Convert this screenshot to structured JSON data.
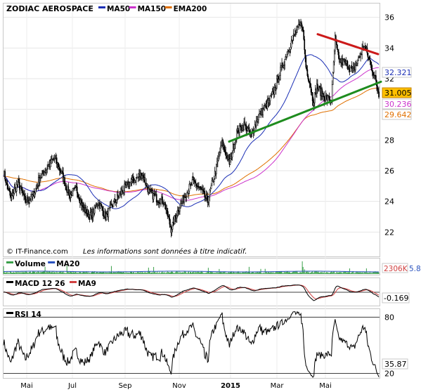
{
  "chart_data": [
    {
      "type": "line",
      "panel": "price",
      "title": "ZODIAC AEROSPACE",
      "legend": [
        {
          "label": "MA50",
          "color": "#1b2fb5"
        },
        {
          "label": "MA150",
          "color": "#cc33cc"
        },
        {
          "label": "EMA200",
          "color": "#e07000"
        }
      ],
      "y_ticks": [
        22,
        24,
        26,
        28,
        30,
        32,
        34,
        36
      ],
      "ylim": [
        21.1,
        36.9
      ],
      "x_ticks": [
        "Mai",
        "Jul",
        "Sep",
        "Nov",
        "2015",
        "Mar",
        "Mai"
      ],
      "value_tags": [
        {
          "value": "32.321",
          "series": "MA50",
          "color": "#1b2fb5"
        },
        {
          "value": "31.005",
          "series": "price",
          "color": "#000000",
          "bg": "#ffc000"
        },
        {
          "value": "30.236",
          "series": "MA150",
          "color": "#cc33cc"
        },
        {
          "value": "29.642",
          "series": "EMA200",
          "color": "#e07000"
        }
      ],
      "series_price_anchors": [
        [
          0,
          25.9
        ],
        [
          10,
          24.2
        ],
        [
          20,
          25.2
        ],
        [
          30,
          24.0
        ],
        [
          40,
          24.3
        ],
        [
          50,
          25.6
        ],
        [
          60,
          26.2
        ],
        [
          70,
          26.8
        ],
        [
          80,
          25.8
        ],
        [
          90,
          24.4
        ],
        [
          100,
          24.8
        ],
        [
          110,
          23.5
        ],
        [
          120,
          23.0
        ],
        [
          130,
          24.0
        ],
        [
          140,
          23.0
        ],
        [
          150,
          23.8
        ],
        [
          160,
          24.5
        ],
        [
          170,
          25.1
        ],
        [
          180,
          25.4
        ],
        [
          190,
          25.8
        ],
        [
          200,
          24.6
        ],
        [
          210,
          24.2
        ],
        [
          220,
          24.0
        ],
        [
          230,
          22.2
        ],
        [
          240,
          23.5
        ],
        [
          250,
          24.5
        ],
        [
          260,
          25.3
        ],
        [
          270,
          24.8
        ],
        [
          280,
          24.0
        ],
        [
          290,
          25.8
        ],
        [
          300,
          27.8
        ],
        [
          310,
          26.5
        ],
        [
          320,
          28.5
        ],
        [
          330,
          29.0
        ],
        [
          340,
          28.3
        ],
        [
          350,
          29.6
        ],
        [
          360,
          30.2
        ],
        [
          370,
          31.0
        ],
        [
          380,
          32.5
        ],
        [
          390,
          33.8
        ],
        [
          400,
          35.0
        ],
        [
          410,
          35.6
        ],
        [
          415,
          32.8
        ],
        [
          420,
          31.8
        ],
        [
          425,
          30.5
        ],
        [
          430,
          31.5
        ],
        [
          440,
          30.8
        ],
        [
          450,
          30.6
        ],
        [
          455,
          34.6
        ],
        [
          460,
          33.2
        ],
        [
          470,
          33.0
        ],
        [
          480,
          32.5
        ],
        [
          490,
          33.6
        ],
        [
          495,
          34.2
        ],
        [
          500,
          33.5
        ],
        [
          510,
          32.0
        ],
        [
          515,
          31.0
        ]
      ],
      "trendlines": [
        {
          "color": "#cc1a1a",
          "from": [
            452,
            34.9
          ],
          "to": [
            538,
            33.6
          ]
        },
        {
          "color": "#1e8c1e",
          "from": [
            326,
            27.9
          ],
          "to": [
            542,
            31.8
          ]
        }
      ],
      "footer": "© IT-Finance.com",
      "disclaimer": "Les informations sont données à titre indicatif."
    },
    {
      "type": "bar",
      "panel": "volume",
      "legend": [
        {
          "label": "Volume",
          "color": "#3aa04a"
        },
        {
          "label": "MA20",
          "color": "#2a52be"
        }
      ],
      "value_tag": "2306K",
      "value_tag_cut": "5.8"
    },
    {
      "type": "line",
      "panel": "macd",
      "legend": [
        {
          "label": "MACD 12 26",
          "color": "#000000"
        },
        {
          "label": "MA9",
          "color": "#d04040"
        }
      ],
      "value_tag": "-0.169"
    },
    {
      "type": "line",
      "panel": "rsi",
      "legend": [
        {
          "label": "RSI 14",
          "color": "#000000"
        }
      ],
      "y_ticks": [
        20,
        80
      ],
      "ylim": [
        15,
        88
      ],
      "value_tag": "35.87"
    }
  ]
}
